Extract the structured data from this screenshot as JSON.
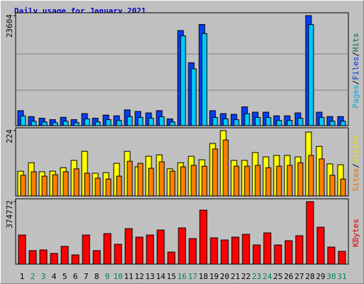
{
  "chart_data": [
    {
      "type": "bar",
      "title": "Daily usage for January 2021",
      "legend_separator": "/",
      "ylim": [
        0,
        23604
      ],
      "yticks": [
        23604
      ],
      "series": [
        {
          "name": "Hits",
          "color": "#00805c",
          "values": [
            3210,
            1930,
            1600,
            1280,
            1770,
            1280,
            2570,
            1600,
            2250,
            2090,
            3370,
            3050,
            2730,
            3210,
            1450,
            20390,
            13490,
            21680,
            3210,
            2570,
            2410,
            4010,
            2890,
            2890,
            2090,
            2090,
            2730,
            23604,
            2890,
            1930,
            1930
          ]
        },
        {
          "name": "Files",
          "color": "#0040ff",
          "values": [
            3210,
            1930,
            1600,
            1280,
            1770,
            1280,
            2570,
            1600,
            2250,
            2090,
            3370,
            3050,
            2730,
            3210,
            1450,
            20390,
            13490,
            21680,
            3210,
            2570,
            2410,
            4010,
            2890,
            2890,
            2090,
            2090,
            2730,
            23604,
            2890,
            1930,
            1930
          ]
        },
        {
          "name": "Pages",
          "color": "#00c8ff",
          "values": [
            2090,
            960,
            800,
            640,
            960,
            640,
            1450,
            800,
            1280,
            1120,
            1930,
            1770,
            1600,
            1930,
            800,
            19270,
            12200,
            19750,
            1770,
            1450,
            1280,
            2570,
            1770,
            1770,
            1120,
            1120,
            1600,
            21680,
            1770,
            960,
            960
          ]
        }
      ]
    },
    {
      "type": "bar",
      "legend_separator": "/",
      "ylim": [
        0,
        224
      ],
      "yticks": [
        224
      ],
      "series": [
        {
          "name": "Visits",
          "color": "#ffff00",
          "values": [
            85,
            114,
            83,
            85,
            97,
            122,
            153,
            78,
            80,
            112,
            153,
            100,
            136,
            141,
            93,
            114,
            136,
            124,
            180,
            224,
            122,
            122,
            149,
            134,
            139,
            139,
            134,
            219,
            170,
            110,
            107
          ]
        },
        {
          "name": "Sites",
          "color": "#ff8000",
          "values": [
            71,
            83,
            68,
            73,
            83,
            93,
            78,
            61,
            58,
            68,
            119,
            112,
            95,
            117,
            85,
            100,
            105,
            102,
            161,
            192,
            102,
            102,
            105,
            97,
            102,
            105,
            114,
            139,
            127,
            71,
            58
          ]
        }
      ]
    },
    {
      "type": "bar",
      "ylim": [
        0,
        374772
      ],
      "yticks": [
        374772
      ],
      "categories": [
        "1",
        "2",
        "3",
        "4",
        "5",
        "6",
        "7",
        "8",
        "9",
        "10",
        "11",
        "12",
        "13",
        "14",
        "15",
        "16",
        "17",
        "18",
        "19",
        "20",
        "21",
        "22",
        "23",
        "24",
        "25",
        "26",
        "27",
        "28",
        "29",
        "30",
        "31"
      ],
      "category_colors": [
        "#000000",
        "#00805c",
        "#00805c",
        "#000000",
        "#000000",
        "#000000",
        "#000000",
        "#000000",
        "#00805c",
        "#00805c",
        "#000000",
        "#000000",
        "#000000",
        "#000000",
        "#000000",
        "#00805c",
        "#00805c",
        "#000000",
        "#000000",
        "#000000",
        "#000000",
        "#000000",
        "#00805c",
        "#00805c",
        "#000000",
        "#000000",
        "#000000",
        "#000000",
        "#000000",
        "#00805c",
        "#00805c"
      ],
      "series": [
        {
          "name": "KBytes",
          "color": "#ff0000",
          "values": [
            174600,
            80900,
            85200,
            63900,
            106500,
            55400,
            174600,
            80900,
            183100,
            119200,
            213000,
            161800,
            174600,
            204400,
            72400,
            217200,
            153300,
            323700,
            157600,
            144800,
            161800,
            178900,
            115000,
            187400,
            115000,
            140500,
            170400,
            374772,
            221500,
            102200,
            76700
          ]
        }
      ]
    }
  ]
}
